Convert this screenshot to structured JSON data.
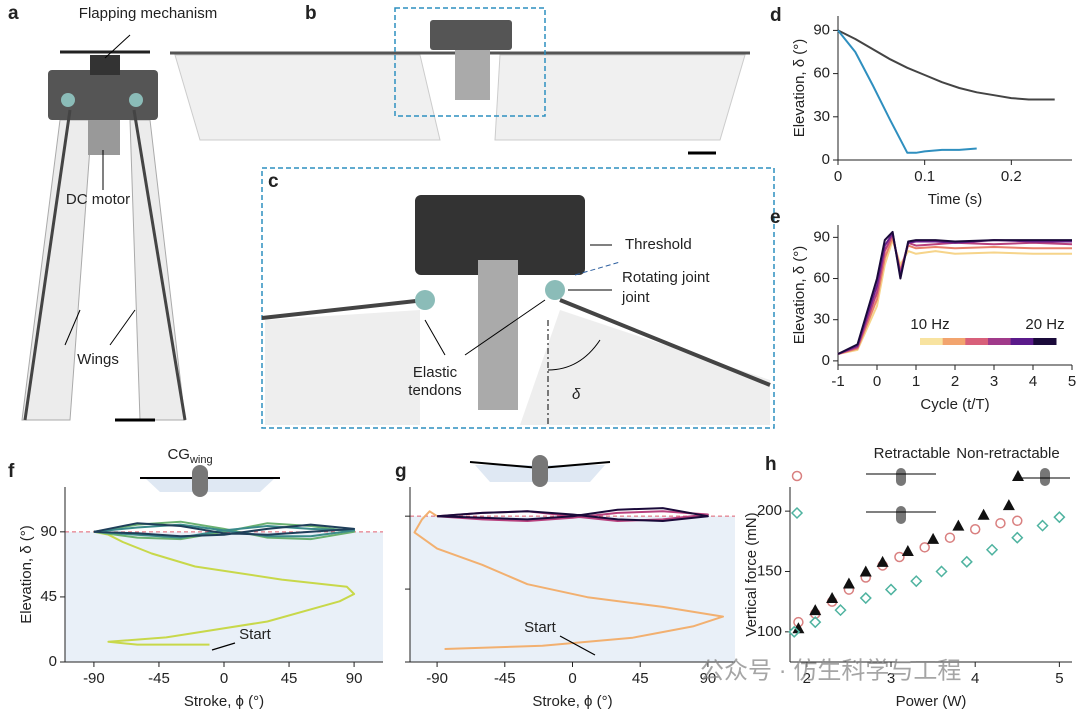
{
  "figure": {
    "panels": [
      "a",
      "b",
      "c"
    ],
    "labels": [
      "Flapping mechanism",
      "DC motor",
      "Wings",
      "Threshold",
      "Rotating joint",
      "joint",
      "Elastic",
      "tendons",
      "δ"
    ],
    "watermark": "公众号 · 仿生科学与工程"
  },
  "chart_data": [
    {
      "type": "line",
      "label": "d",
      "x_label": "Time (s)",
      "y_label": "Elevation, δ (°)",
      "xlim": [
        0,
        0.27
      ],
      "ylim": [
        0,
        100
      ],
      "xticks": [
        0,
        0.1,
        0.2
      ],
      "yticks": [
        0,
        30,
        60,
        90
      ],
      "series": [
        {
          "color": "#444444",
          "x": [
            0,
            0.02,
            0.04,
            0.06,
            0.08,
            0.1,
            0.12,
            0.14,
            0.16,
            0.18,
            0.2,
            0.22,
            0.25
          ],
          "values": [
            90,
            84,
            77,
            70,
            64,
            59,
            54,
            50,
            47,
            45,
            43,
            42,
            42
          ]
        },
        {
          "color": "#2f8fbf",
          "x": [
            0,
            0.02,
            0.04,
            0.06,
            0.08,
            0.09,
            0.1,
            0.12,
            0.14,
            0.16
          ],
          "values": [
            90,
            75,
            52,
            28,
            5,
            5,
            6,
            7,
            7,
            8
          ]
        }
      ]
    },
    {
      "type": "line",
      "label": "e",
      "x_label": "Cycle (t/T)",
      "y_label": "Elevation, δ (°)",
      "xlim": [
        -1,
        5
      ],
      "ylim": [
        -3,
        99
      ],
      "xticks": [
        -1,
        0,
        1,
        2,
        3,
        4,
        5
      ],
      "yticks": [
        0,
        30,
        60,
        90
      ],
      "colorbar": {
        "colors": [
          "#f8e3a0",
          "#f2a46e",
          "#d8607a",
          "#a03a8a",
          "#5a1a8a",
          "#1a0a3a"
        ],
        "labels": [
          "10 Hz",
          "20 Hz"
        ]
      },
      "series": [
        {
          "color": "#f6d48a",
          "x": [
            -1,
            -0.5,
            0,
            0.2,
            0.4,
            0.6,
            0.8,
            1,
            1.5,
            2,
            3,
            4,
            5
          ],
          "values": [
            5,
            8,
            40,
            70,
            88,
            70,
            80,
            78,
            80,
            78,
            79,
            78,
            78
          ]
        },
        {
          "color": "#e8806a",
          "x": [
            -1,
            -0.5,
            0,
            0.2,
            0.4,
            0.6,
            0.8,
            1,
            1.5,
            2,
            3,
            4,
            5
          ],
          "values": [
            5,
            9,
            45,
            75,
            90,
            66,
            84,
            82,
            83,
            82,
            83,
            82,
            82
          ]
        },
        {
          "color": "#b8417e",
          "x": [
            -1,
            -0.5,
            0,
            0.2,
            0.4,
            0.6,
            0.8,
            1,
            1.5,
            2,
            3,
            4,
            5
          ],
          "values": [
            5,
            10,
            50,
            80,
            92,
            64,
            86,
            84,
            85,
            86,
            85,
            86,
            85
          ]
        },
        {
          "color": "#6a1f8c",
          "x": [
            -1,
            -0.5,
            0,
            0.2,
            0.4,
            0.6,
            0.8,
            1,
            1.5,
            2,
            3,
            4,
            5
          ],
          "values": [
            5,
            11,
            55,
            84,
            93,
            62,
            86,
            87,
            87,
            86,
            88,
            87,
            87
          ]
        },
        {
          "color": "#1a0a3a",
          "x": [
            -1,
            -0.5,
            0,
            0.2,
            0.4,
            0.6,
            0.8,
            1,
            1.5,
            2,
            3,
            4,
            5
          ],
          "values": [
            5,
            12,
            60,
            88,
            94,
            60,
            87,
            88,
            88,
            87,
            88,
            88,
            88
          ]
        }
      ]
    },
    {
      "type": "line",
      "label": "f",
      "x_label": "Stroke, ϕ (°)",
      "y_label": "Elevation, δ (°)",
      "xlim": [
        -110,
        110
      ],
      "ylim": [
        0,
        121
      ],
      "xticks": [
        -90,
        -45,
        0,
        45,
        90
      ],
      "yticks": [
        0,
        45,
        90
      ],
      "reference_line": 90,
      "shade": "#e9f0f8",
      "annotations": [
        {
          "text": "Start"
        },
        {
          "text": "CG",
          "sub": "wing"
        }
      ],
      "series": [
        {
          "color": "#c8d84a",
          "x": [
            -10,
            -60,
            -80,
            -40,
            30,
            80,
            90,
            85,
            40,
            -20,
            -50,
            -70,
            -80,
            -90
          ],
          "values": [
            12,
            12,
            14,
            17,
            28,
            42,
            47,
            52,
            57,
            66,
            75,
            83,
            88,
            90
          ]
        },
        {
          "color": "#6ab070",
          "x": [
            -90,
            -60,
            -30,
            0,
            30,
            60,
            90,
            60,
            30,
            0,
            -30,
            -60,
            -90
          ],
          "values": [
            90,
            95,
            97,
            92,
            86,
            85,
            90,
            94,
            96,
            90,
            85,
            86,
            90
          ]
        },
        {
          "color": "#3a8a8a",
          "x": [
            -90,
            -60,
            -30,
            0,
            30,
            60,
            90,
            60,
            30,
            0,
            -30,
            -60,
            -90
          ],
          "values": [
            90,
            93,
            95,
            91,
            87,
            87,
            91,
            92,
            94,
            91,
            86,
            88,
            90
          ]
        },
        {
          "color": "#1f3f5a",
          "x": [
            -90,
            -60,
            -30,
            0,
            30,
            60,
            90,
            60,
            30,
            0,
            -30,
            -60,
            -90
          ],
          "values": [
            90,
            96,
            94,
            89,
            88,
            90,
            92,
            95,
            92,
            88,
            87,
            89,
            90
          ]
        }
      ]
    },
    {
      "type": "line",
      "label": "g",
      "x_label": "Stroke, ϕ (°)",
      "xlim": [
        -108,
        108
      ],
      "ylim": [
        0,
        108
      ],
      "xticks": [
        -90,
        -45,
        0,
        45,
        90
      ],
      "yticks": [
        0,
        45,
        90
      ],
      "show_ytick_labels": false,
      "reference_line": 90,
      "shade": "#e9f0f8",
      "annotations": [
        {
          "text": "Start"
        }
      ],
      "series": [
        {
          "color": "#f2b070",
          "x": [
            -85,
            -20,
            40,
            80,
            100,
            60,
            10,
            -30,
            -60,
            -90,
            -105,
            -100,
            -95,
            -90
          ],
          "values": [
            8,
            10,
            15,
            22,
            28,
            34,
            40,
            48,
            60,
            70,
            80,
            88,
            93,
            90
          ]
        },
        {
          "color": "#b8417e",
          "x": [
            -90,
            -60,
            -30,
            0,
            30,
            60,
            90,
            60,
            30,
            0,
            -30,
            -60,
            -90
          ],
          "values": [
            90,
            92,
            93,
            90,
            87,
            88,
            91,
            93,
            92,
            89,
            87,
            88,
            90
          ]
        },
        {
          "color": "#1a0a3a",
          "x": [
            -90,
            -60,
            -30,
            0,
            30,
            60,
            90,
            60,
            30,
            0,
            -30,
            -60,
            -90
          ],
          "values": [
            90,
            89,
            88,
            90,
            94,
            95,
            90,
            87,
            88,
            91,
            93,
            92,
            90
          ]
        }
      ]
    },
    {
      "type": "scatter",
      "label": "h",
      "x_label": "Power (W)",
      "y_label": "Vertical force (mN)",
      "xlim": [
        1.8,
        5.15
      ],
      "ylim": [
        75,
        220
      ],
      "xticks": [
        2,
        3,
        4,
        5
      ],
      "yticks": [
        100,
        150,
        200
      ],
      "legend_headings": [
        "Retractable",
        "Non-retractable"
      ],
      "series": [
        {
          "color": "#d98080",
          "marker": "circle",
          "x": [
            1.9,
            2.1,
            2.3,
            2.5,
            2.7,
            2.9,
            3.1,
            3.4,
            3.7,
            4,
            4.3,
            4.5
          ],
          "values": [
            108,
            115,
            125,
            135,
            145,
            155,
            162,
            170,
            178,
            185,
            190,
            192
          ]
        },
        {
          "color": "#111111",
          "marker": "triangle",
          "x": [
            1.9,
            2.1,
            2.3,
            2.5,
            2.7,
            2.9,
            3.2,
            3.5,
            3.8,
            4.1,
            4.4
          ],
          "values": [
            103,
            118,
            128,
            140,
            150,
            158,
            167,
            177,
            188,
            197,
            205
          ]
        },
        {
          "color": "#4fb3a0",
          "marker": "diamond",
          "x": [
            1.85,
            2.1,
            2.4,
            2.7,
            3,
            3.3,
            3.6,
            3.9,
            4.2,
            4.5,
            4.8,
            5
          ],
          "values": [
            100,
            108,
            118,
            128,
            135,
            142,
            150,
            158,
            168,
            178,
            188,
            195
          ]
        }
      ]
    }
  ]
}
